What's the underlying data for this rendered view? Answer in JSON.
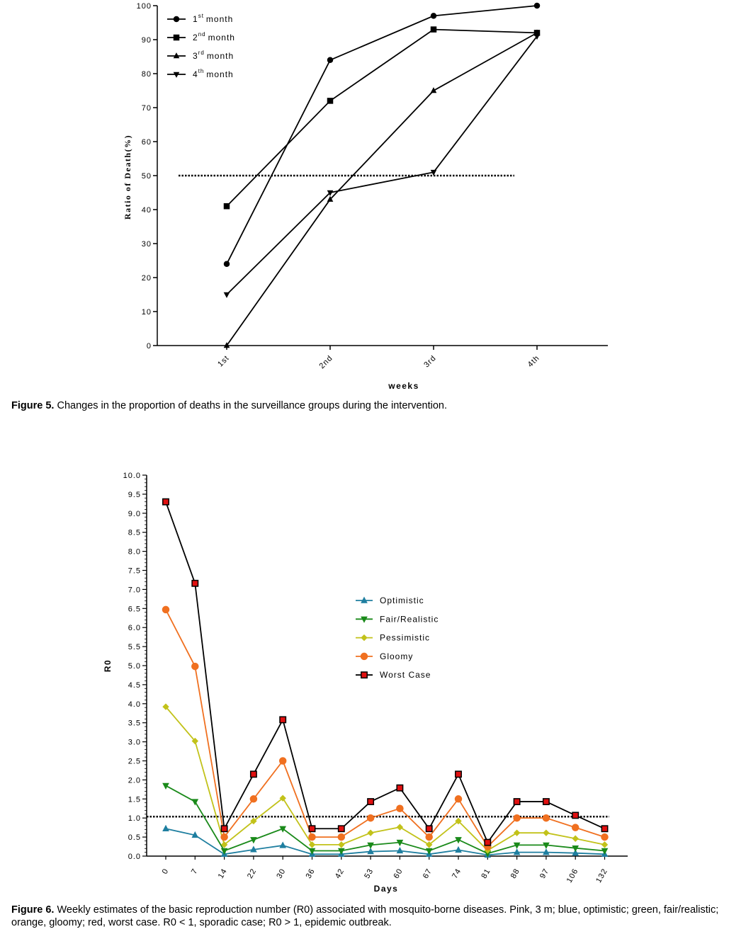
{
  "figures": [
    {
      "caption_label": "Figure 5.",
      "caption_text": "Changes in the proportion of deaths in the surveillance groups during the intervention."
    },
    {
      "caption_label": "Figure 6.",
      "caption_text": "Weekly estimates of the basic reproduction number (R0) associated with mosquito-borne diseases. Pink, 3 m; blue, optimistic; green, fair/realistic; orange, gloomy; red, worst case. R0 < 1, sporadic case; R0 > 1, epidemic outbreak."
    }
  ],
  "chart_data": [
    {
      "type": "line",
      "title": "",
      "xlabel": "weeks",
      "ylabel": "Ratio of Death(%)",
      "categories": [
        "1st",
        "2nd",
        "3rd",
        "4th"
      ],
      "ylim": [
        0,
        100
      ],
      "yticks": [
        0,
        10,
        20,
        30,
        40,
        50,
        60,
        70,
        80,
        90,
        100
      ],
      "reference_line": 50,
      "legend_position": "top-left",
      "series": [
        {
          "name_base": "1",
          "name_sup": "st",
          "name_rest": "month",
          "marker": "circle",
          "values": [
            24,
            84,
            97,
            100
          ]
        },
        {
          "name_base": "2",
          "name_sup": "nd",
          "name_rest": "month",
          "marker": "square",
          "values": [
            41,
            72,
            93,
            92
          ]
        },
        {
          "name_base": "3",
          "name_sup": "rd",
          "name_rest": "month",
          "marker": "triangle-up",
          "values": [
            0,
            43,
            75,
            92
          ]
        },
        {
          "name_base": "4",
          "name_sup": "th",
          "name_rest": "month",
          "marker": "triangle-down",
          "values": [
            15,
            45,
            51,
            91
          ]
        }
      ]
    },
    {
      "type": "line",
      "title": "",
      "xlabel": "Days",
      "ylabel": "R0",
      "categories": [
        "0",
        "7",
        "14",
        "22",
        "30",
        "36",
        "42",
        "53",
        "60",
        "67",
        "74",
        "81",
        "88",
        "97",
        "106",
        "132"
      ],
      "ylim": [
        0,
        10
      ],
      "yticks": [
        "0.0",
        "0.5",
        "1.0",
        "1.5",
        "2.0",
        "2.5",
        "3.0",
        "3.5",
        "4.0",
        "4.5",
        "5.0",
        "5.5",
        "6.0",
        "6.5",
        "7.0",
        "7.5",
        "8.0",
        "8.5",
        "9.0",
        "9.5",
        "10.0"
      ],
      "reference_line": 1.0,
      "legend_position": "center-right",
      "series": [
        {
          "name": "Optimistic",
          "color": "#1f7fa0",
          "marker": "triangle-up",
          "values": [
            0.72,
            0.55,
            0.05,
            0.17,
            0.28,
            0.05,
            0.05,
            0.12,
            0.14,
            0.05,
            0.16,
            0.03,
            0.1,
            0.1,
            0.08,
            0.05
          ]
        },
        {
          "name": "Fair/Realistic",
          "color": "#1a8a1a",
          "marker": "triangle-down",
          "values": [
            1.85,
            1.43,
            0.14,
            0.43,
            0.72,
            0.14,
            0.14,
            0.29,
            0.36,
            0.14,
            0.43,
            0.07,
            0.29,
            0.29,
            0.21,
            0.14
          ]
        },
        {
          "name": "Pessimistic",
          "color": "#c2c21a",
          "marker": "diamond",
          "values": [
            3.92,
            3.02,
            0.3,
            0.92,
            1.52,
            0.3,
            0.3,
            0.61,
            0.76,
            0.3,
            0.92,
            0.15,
            0.61,
            0.61,
            0.46,
            0.3
          ]
        },
        {
          "name": "Gloomy",
          "color": "#f07020",
          "marker": "circle",
          "values": [
            6.47,
            4.98,
            0.5,
            1.5,
            2.5,
            0.5,
            0.5,
            1.0,
            1.25,
            0.5,
            1.5,
            0.25,
            1.0,
            1.0,
            0.75,
            0.5
          ]
        },
        {
          "name": "Worst Case",
          "color": "#000000",
          "marker_fill": "#e01010",
          "marker": "square",
          "values": [
            9.3,
            7.16,
            0.72,
            2.15,
            3.58,
            0.72,
            0.72,
            1.43,
            1.79,
            0.72,
            2.15,
            0.36,
            1.43,
            1.43,
            1.07,
            0.72
          ]
        }
      ]
    }
  ]
}
